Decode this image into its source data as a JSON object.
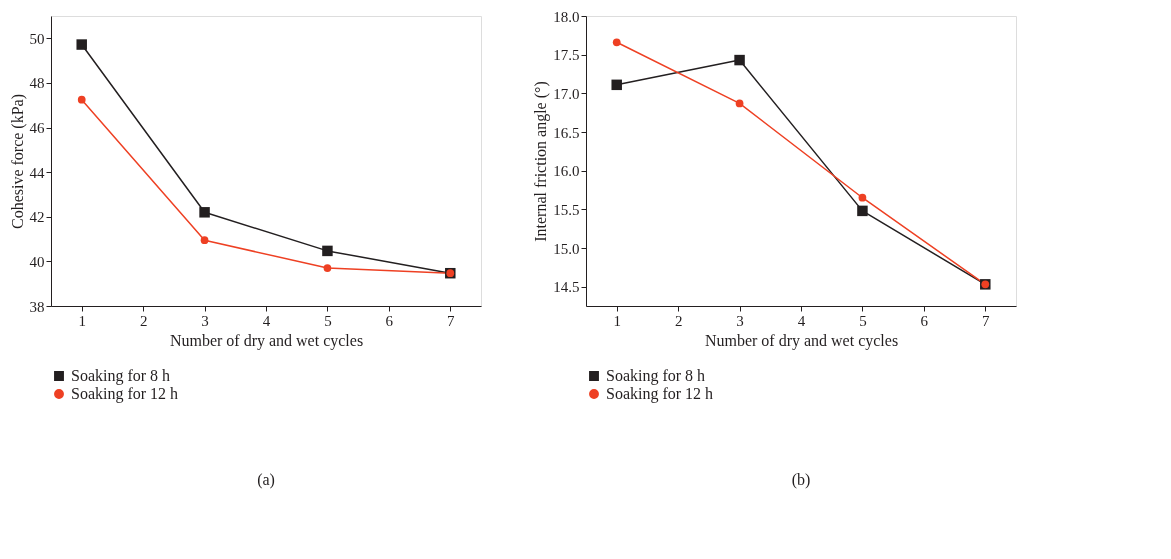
{
  "chart_data": [
    {
      "type": "line",
      "xlabel": "Number of dry and wet cycles",
      "ylabel": "Cohesive force (kPa)",
      "x": [
        1,
        3,
        5,
        7
      ],
      "xlim": [
        0.5,
        7.5
      ],
      "xticks": [
        1,
        2,
        3,
        4,
        5,
        6,
        7
      ],
      "ylim": [
        38,
        51
      ],
      "yticks": [
        38,
        40,
        42,
        44,
        46,
        48,
        50
      ],
      "grid": false,
      "legend": "bottom left",
      "line_style": "solid",
      "annotations": [
        "(a)"
      ],
      "series": [
        {
          "name": "Soaking for 8 h",
          "color": "#231f20",
          "marker": "square",
          "values": [
            49.72,
            42.2,
            40.47,
            39.47
          ]
        },
        {
          "name": "Soaking for 12 h",
          "color": "#ee4023",
          "marker": "circle",
          "values": [
            47.25,
            40.95,
            39.7,
            39.47
          ]
        }
      ]
    },
    {
      "type": "line",
      "xlabel": "Number of dry and wet cycles",
      "ylabel": "Internal friction angle (°)",
      "x": [
        1,
        3,
        5,
        7
      ],
      "xlim": [
        0.5,
        7.5
      ],
      "xticks": [
        1,
        2,
        3,
        4,
        5,
        6,
        7
      ],
      "ylim": [
        14.25,
        18.0
      ],
      "yticks": [
        {
          "value": 14.5,
          "label": "14.5"
        },
        {
          "value": 15.0,
          "label": "15.0"
        },
        {
          "value": 15.5,
          "label": "15.5"
        },
        {
          "value": 16.0,
          "label": "16.0"
        },
        {
          "value": 16.5,
          "label": "16.5"
        },
        {
          "value": 17.0,
          "label": "17.0"
        },
        {
          "value": 17.5,
          "label": "17.5"
        },
        {
          "value": 18.0,
          "label": "18.0"
        }
      ],
      "grid": false,
      "legend": "bottom left",
      "line_style": "solid",
      "annotations": [
        "(b)"
      ],
      "series": [
        {
          "name": "Soaking for 8 h",
          "color": "#231f20",
          "marker": "square",
          "values": [
            17.11,
            17.43,
            15.48,
            14.53
          ]
        },
        {
          "name": "Soaking for 12 h",
          "color": "#ee4023",
          "marker": "circle",
          "values": [
            17.66,
            16.87,
            15.65,
            14.53
          ]
        }
      ]
    }
  ]
}
